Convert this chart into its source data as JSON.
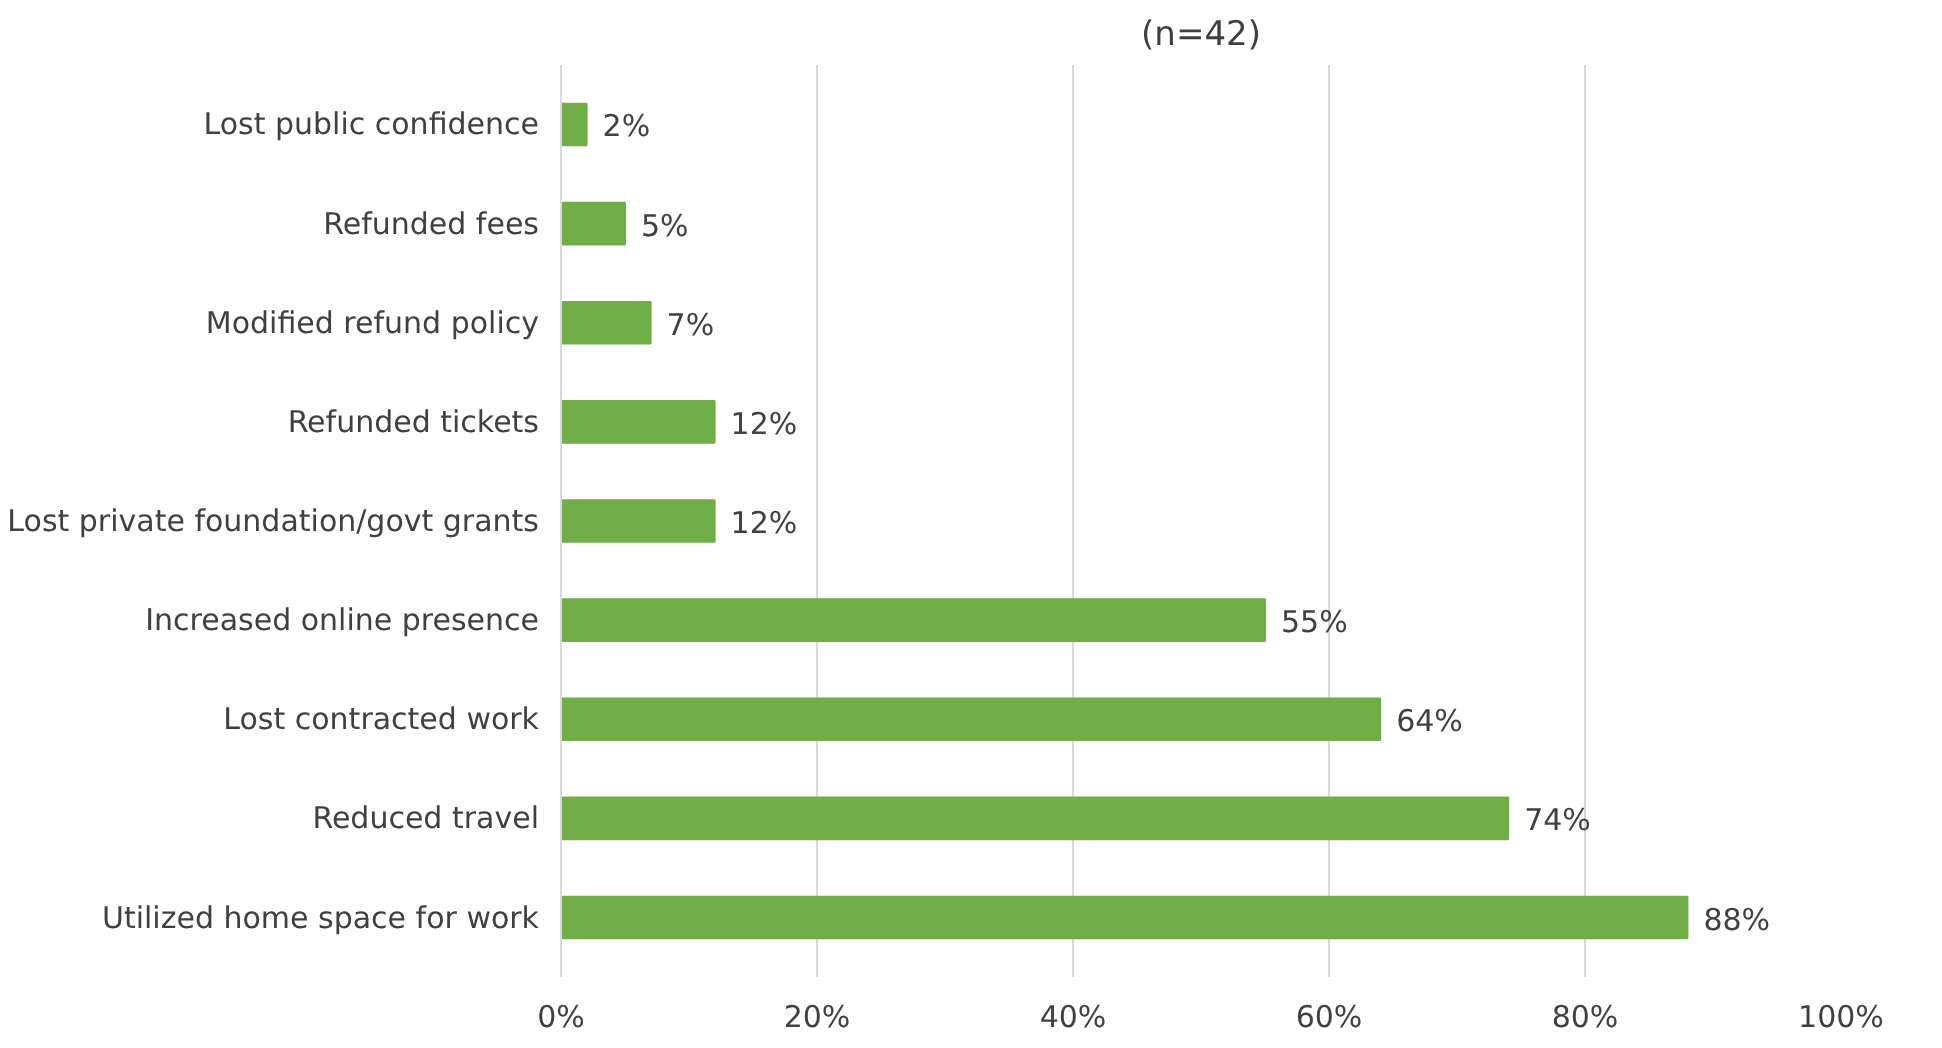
{
  "chart_data": {
    "type": "bar",
    "orientation": "horizontal",
    "title": "(n=42)",
    "categories": [
      "Lost public confidence",
      "Refunded fees",
      "Modified refund policy",
      "Refunded tickets",
      "Lost private foundation/govt grants",
      "Increased online presence",
      "Lost contracted work",
      "Reduced travel",
      "Utilized home space for work"
    ],
    "values": [
      2,
      5,
      7,
      12,
      12,
      55,
      64,
      74,
      88
    ],
    "value_labels": [
      "2%",
      "5%",
      "7%",
      "12%",
      "12%",
      "55%",
      "64%",
      "74%",
      "88%"
    ],
    "color": "#70ad47",
    "xlim": [
      0,
      100
    ],
    "xticks": [
      {
        "value": 0,
        "label": "0%"
      },
      {
        "value": 20,
        "label": "20%"
      },
      {
        "value": 40,
        "label": "40%"
      },
      {
        "value": 60,
        "label": "60%"
      },
      {
        "value": 80,
        "label": "80%"
      },
      {
        "value": 100,
        "label": "100%"
      }
    ],
    "grid": "x"
  }
}
